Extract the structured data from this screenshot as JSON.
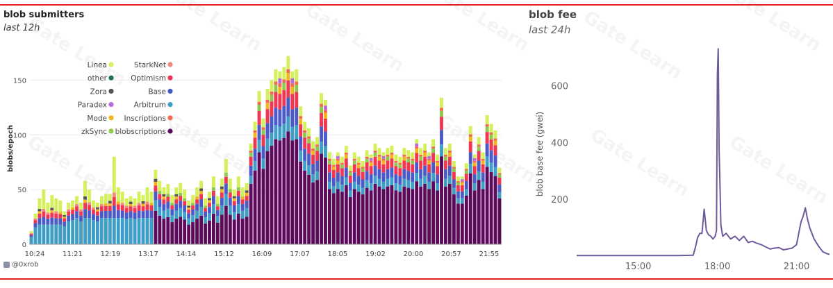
{
  "panels": {
    "left": {
      "title": "blob submitters",
      "subtitle": "last 12h"
    },
    "right": {
      "title": "blob fee",
      "subtitle": "last 24h"
    }
  },
  "credit": "@0xrob",
  "watermark": "Gate Learn",
  "colors": {
    "frame_line": "#e3201b",
    "Linea": "#d4f05a",
    "other": "#1f6e5c",
    "Zora": "#555555",
    "Paradex": "#b86ed4",
    "Mode": "#f0b61c",
    "zkSync": "#8cc94c",
    "StarkNet": "#f08a80",
    "Optimism": "#f23651",
    "Base": "#4a5ac9",
    "Arbitrum": "#3e9ec6",
    "Inscriptions": "#f26a4f",
    "blobscriptions": "#5e0a5c",
    "fee_line": "#6e5a9a"
  },
  "chart_data": [
    {
      "type": "bar",
      "stacked": true,
      "title": "blob submitters",
      "subtitle": "last 12h",
      "ylabel": "blobs/epoch",
      "xlabel": "",
      "ylim": [
        0,
        175
      ],
      "yticks": [
        0,
        50,
        100,
        150
      ],
      "xtick_labels": [
        "10:24",
        "11:21",
        "12:19",
        "13:17",
        "14:14",
        "15:12",
        "16:09",
        "17:07",
        "18:05",
        "19:02",
        "20:00",
        "20:57",
        "21:55"
      ],
      "legend_position": "top-left",
      "legend": [
        "Linea",
        "other",
        "Zora",
        "Paradex",
        "Mode",
        "zkSync",
        "StarkNet",
        "Optimism",
        "Base",
        "Arbitrum",
        "Inscriptions",
        "blobscriptions"
      ],
      "totals": [
        12,
        28,
        42,
        50,
        38,
        45,
        42,
        40,
        30,
        38,
        40,
        44,
        38,
        58,
        50,
        40,
        38,
        44,
        46,
        46,
        80,
        52,
        48,
        42,
        44,
        42,
        48,
        45,
        52,
        48,
        68,
        58,
        52,
        55,
        45,
        52,
        56,
        50,
        40,
        45,
        52,
        58,
        42,
        48,
        62,
        44,
        60,
        78,
        60,
        50,
        62,
        52,
        56,
        92,
        112,
        140,
        115,
        142,
        150,
        160,
        158,
        162,
        172,
        158,
        160,
        126,
        112,
        106,
        94,
        98,
        138,
        132,
        84,
        78,
        84,
        80,
        90,
        72,
        84,
        80,
        76,
        86,
        82,
        92,
        88,
        84,
        88,
        90,
        82,
        80,
        88,
        86,
        84,
        96,
        88,
        92,
        84,
        96,
        82,
        134,
        88,
        92,
        76,
        62,
        62,
        74,
        108,
        82,
        98,
        84,
        118,
        110,
        104,
        70
      ]
    },
    {
      "type": "line",
      "title": "blob fee",
      "subtitle": "last 24h",
      "ylabel": "blob base fee (gwei)",
      "xlabel": "",
      "yticks": [
        200,
        400,
        600
      ],
      "ylim": [
        0,
        760
      ],
      "xlim": [
        "12:40",
        "22:15"
      ],
      "xtick_labels": [
        "15:00",
        "18:00",
        "21:00"
      ],
      "series": [
        {
          "x": [
            "12:40",
            "13:30",
            "14:30",
            "15:30",
            "16:30",
            "17:05",
            "17:10",
            "17:15",
            "17:20",
            "17:25",
            "17:30",
            "17:35",
            "17:40",
            "17:45",
            "17:50",
            "17:55",
            "17:58",
            "18:00",
            "18:02",
            "18:04",
            "18:06",
            "18:08",
            "18:12",
            "18:20",
            "18:30",
            "18:40",
            "18:50",
            "19:00",
            "19:10",
            "19:20",
            "19:30",
            "19:40",
            "19:50",
            "20:00",
            "20:10",
            "20:20",
            "20:30",
            "20:40",
            "20:50",
            "21:00",
            "21:05",
            "21:10",
            "21:15",
            "21:20",
            "21:25",
            "21:30",
            "21:40",
            "21:50",
            "22:00",
            "22:10",
            "22:15"
          ],
          "y": [
            2,
            2,
            2,
            2,
            2,
            3,
            30,
            65,
            80,
            80,
            165,
            90,
            75,
            70,
            60,
            70,
            90,
            640,
            730,
            370,
            240,
            110,
            70,
            80,
            60,
            70,
            55,
            70,
            48,
            52,
            45,
            40,
            32,
            25,
            28,
            30,
            22,
            25,
            28,
            40,
            80,
            120,
            140,
            170,
            130,
            100,
            60,
            35,
            15,
            8,
            6
          ]
        }
      ]
    }
  ]
}
